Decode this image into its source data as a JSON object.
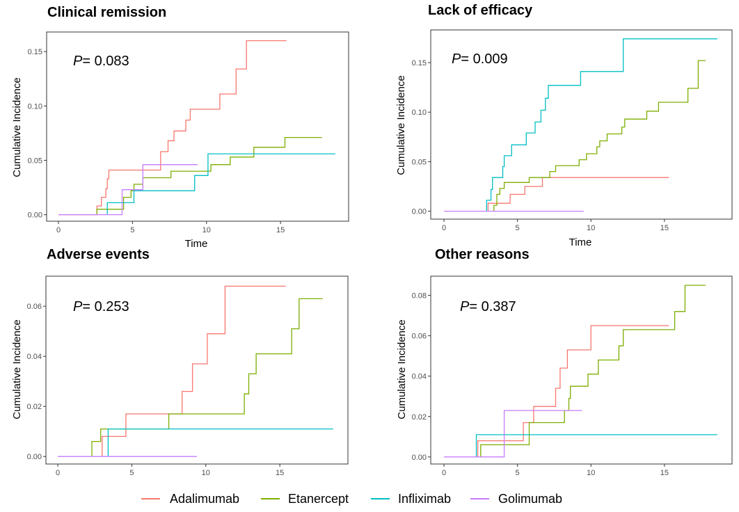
{
  "colors": {
    "Adalimumab": "#F8766D",
    "Etanercept": "#7CAE00",
    "Infliximab": "#00BFC4",
    "Golimumab": "#C77CFF"
  },
  "legend": [
    "Adalimumab",
    "Etanercept",
    "Infliximab",
    "Golimumab"
  ],
  "chart_data": [
    {
      "type": "line",
      "step": true,
      "title": "Clinical remission",
      "annotation": {
        "p_label": "P",
        "p_value": "= 0.083"
      },
      "xlabel": "Time",
      "ylabel": "Cumulative Incidence",
      "xlim": [
        -0.8,
        19.6
      ],
      "ylim": [
        -0.006,
        0.168
      ],
      "xticks": [
        0,
        5,
        10,
        15
      ],
      "yticks": [
        0.0,
        0.05,
        0.1,
        0.15
      ],
      "ytick_labels": [
        "0.00",
        "0.05",
        "0.10",
        "0.15"
      ],
      "grid": false,
      "series": [
        {
          "name": "Adalimumab",
          "points": [
            [
              0,
              0
            ],
            [
              2.6,
              0
            ],
            [
              2.6,
              0.008
            ],
            [
              2.9,
              0.008
            ],
            [
              2.9,
              0.016
            ],
            [
              3.2,
              0.016
            ],
            [
              3.2,
              0.024
            ],
            [
              3.3,
              0.024
            ],
            [
              3.3,
              0.033
            ],
            [
              3.4,
              0.033
            ],
            [
              3.4,
              0.041
            ],
            [
              6.9,
              0.041
            ],
            [
              6.9,
              0.058
            ],
            [
              7.4,
              0.058
            ],
            [
              7.4,
              0.068
            ],
            [
              7.8,
              0.068
            ],
            [
              7.8,
              0.077
            ],
            [
              8.6,
              0.077
            ],
            [
              8.6,
              0.087
            ],
            [
              8.9,
              0.087
            ],
            [
              8.9,
              0.097
            ],
            [
              10.9,
              0.097
            ],
            [
              10.9,
              0.111
            ],
            [
              12.0,
              0.111
            ],
            [
              12.0,
              0.134
            ],
            [
              12.7,
              0.134
            ],
            [
              12.7,
              0.16
            ],
            [
              15.4,
              0.16
            ]
          ]
        },
        {
          "name": "Etanercept",
          "points": [
            [
              2.6,
              0
            ],
            [
              2.6,
              0.005
            ],
            [
              4.4,
              0.005
            ],
            [
              4.4,
              0.011
            ],
            [
              4.4,
              0.016
            ],
            [
              4.9,
              0.016
            ],
            [
              4.9,
              0.022
            ],
            [
              5.1,
              0.022
            ],
            [
              5.1,
              0.028
            ],
            [
              5.7,
              0.028
            ],
            [
              5.7,
              0.034
            ],
            [
              7.6,
              0.034
            ],
            [
              7.6,
              0.04
            ],
            [
              10.3,
              0.04
            ],
            [
              10.3,
              0.046
            ],
            [
              11.6,
              0.046
            ],
            [
              11.6,
              0.053
            ],
            [
              13.2,
              0.053
            ],
            [
              13.2,
              0.062
            ],
            [
              15.3,
              0.062
            ],
            [
              15.3,
              0.071
            ],
            [
              17.8,
              0.071
            ]
          ]
        },
        {
          "name": "Infliximab",
          "points": [
            [
              3.3,
              0
            ],
            [
              3.3,
              0.011
            ],
            [
              5.1,
              0.011
            ],
            [
              5.1,
              0.022
            ],
            [
              9.2,
              0.022
            ],
            [
              9.2,
              0.036
            ],
            [
              10.1,
              0.036
            ],
            [
              10.1,
              0.056
            ],
            [
              18.7,
              0.056
            ]
          ]
        },
        {
          "name": "Golimumab",
          "points": [
            [
              0,
              0
            ],
            [
              4.3,
              0
            ],
            [
              4.3,
              0.023
            ],
            [
              5.7,
              0.023
            ],
            [
              5.7,
              0.046
            ],
            [
              9.4,
              0.046
            ]
          ]
        }
      ]
    },
    {
      "type": "line",
      "step": true,
      "title": "Lack of efficacy",
      "annotation": {
        "p_label": "P",
        "p_value": "= 0.009"
      },
      "xlabel": "Time",
      "ylabel": "Cumulative Incidence",
      "xlim": [
        -0.9,
        19.6
      ],
      "ylim": [
        -0.008,
        0.183
      ],
      "xticks": [
        0,
        5,
        10,
        15
      ],
      "yticks": [
        0.0,
        0.05,
        0.1,
        0.15
      ],
      "ytick_labels": [
        "0.00",
        "0.05",
        "0.10",
        "0.15"
      ],
      "grid": false,
      "series": [
        {
          "name": "Adalimumab",
          "points": [
            [
              3.0,
              0
            ],
            [
              3.0,
              0.008
            ],
            [
              4.5,
              0.008
            ],
            [
              4.5,
              0.017
            ],
            [
              5.5,
              0.017
            ],
            [
              5.5,
              0.025
            ],
            [
              6.7,
              0.025
            ],
            [
              6.7,
              0.034
            ],
            [
              15.3,
              0.034
            ]
          ]
        },
        {
          "name": "Etanercept",
          "points": [
            [
              3.4,
              0
            ],
            [
              3.4,
              0.006
            ],
            [
              3.6,
              0.006
            ],
            [
              3.6,
              0.017
            ],
            [
              3.8,
              0.017
            ],
            [
              3.8,
              0.023
            ],
            [
              4.1,
              0.023
            ],
            [
              4.1,
              0.029
            ],
            [
              5.8,
              0.029
            ],
            [
              5.8,
              0.034
            ],
            [
              7.2,
              0.034
            ],
            [
              7.2,
              0.04
            ],
            [
              7.6,
              0.04
            ],
            [
              7.6,
              0.046
            ],
            [
              9.2,
              0.046
            ],
            [
              9.2,
              0.052
            ],
            [
              9.7,
              0.052
            ],
            [
              9.7,
              0.058
            ],
            [
              10.4,
              0.058
            ],
            [
              10.4,
              0.065
            ],
            [
              10.6,
              0.065
            ],
            [
              10.6,
              0.071
            ],
            [
              11.1,
              0.071
            ],
            [
              11.1,
              0.078
            ],
            [
              12.1,
              0.078
            ],
            [
              12.1,
              0.085
            ],
            [
              12.3,
              0.085
            ],
            [
              12.3,
              0.093
            ],
            [
              13.8,
              0.093
            ],
            [
              13.8,
              0.101
            ],
            [
              14.6,
              0.101
            ],
            [
              14.6,
              0.11
            ],
            [
              16.6,
              0.11
            ],
            [
              16.6,
              0.124
            ],
            [
              17.3,
              0.124
            ],
            [
              17.3,
              0.152
            ],
            [
              17.8,
              0.152
            ]
          ]
        },
        {
          "name": "Infliximab",
          "points": [
            [
              2.9,
              0
            ],
            [
              2.9,
              0.011
            ],
            [
              3.2,
              0.011
            ],
            [
              3.2,
              0.022
            ],
            [
              3.3,
              0.022
            ],
            [
              3.3,
              0.034
            ],
            [
              4.0,
              0.034
            ],
            [
              4.0,
              0.045
            ],
            [
              4.1,
              0.045
            ],
            [
              4.1,
              0.056
            ],
            [
              4.6,
              0.056
            ],
            [
              4.6,
              0.067
            ],
            [
              5.6,
              0.067
            ],
            [
              5.6,
              0.079
            ],
            [
              6.2,
              0.079
            ],
            [
              6.2,
              0.09
            ],
            [
              6.6,
              0.09
            ],
            [
              6.6,
              0.102
            ],
            [
              6.9,
              0.102
            ],
            [
              6.9,
              0.114
            ],
            [
              7.1,
              0.114
            ],
            [
              7.1,
              0.127
            ],
            [
              9.3,
              0.127
            ],
            [
              9.3,
              0.141
            ],
            [
              12.2,
              0.141
            ],
            [
              12.2,
              0.174
            ],
            [
              18.6,
              0.174
            ]
          ]
        },
        {
          "name": "Golimumab",
          "points": [
            [
              0,
              0
            ],
            [
              9.5,
              0
            ]
          ]
        }
      ]
    },
    {
      "type": "line",
      "step": true,
      "title": "Adverse events",
      "annotation": {
        "p_label": "P",
        "p_value": "= 0.253"
      },
      "xlabel": "",
      "ylabel": "Cumulative Incidence",
      "xlim": [
        -0.8,
        19.6
      ],
      "ylim": [
        -0.003,
        0.072
      ],
      "xticks": [
        0,
        5,
        10,
        15
      ],
      "yticks": [
        0.0,
        0.02,
        0.04,
        0.06
      ],
      "ytick_labels": [
        "0.00",
        "0.02",
        "0.04",
        "0.06"
      ],
      "grid": false,
      "series": [
        {
          "name": "Adalimumab",
          "points": [
            [
              3.0,
              0
            ],
            [
              3.0,
              0.008
            ],
            [
              4.6,
              0.008
            ],
            [
              4.6,
              0.017
            ],
            [
              8.4,
              0.017
            ],
            [
              8.4,
              0.026
            ],
            [
              9.1,
              0.026
            ],
            [
              9.1,
              0.037
            ],
            [
              10.1,
              0.037
            ],
            [
              10.1,
              0.049
            ],
            [
              11.3,
              0.049
            ],
            [
              11.3,
              0.068
            ],
            [
              15.4,
              0.068
            ]
          ]
        },
        {
          "name": "Etanercept",
          "points": [
            [
              2.3,
              0
            ],
            [
              2.3,
              0.006
            ],
            [
              2.9,
              0.006
            ],
            [
              2.9,
              0.011
            ],
            [
              3.4,
              0.011
            ],
            [
              7.5,
              0.011
            ],
            [
              7.5,
              0.017
            ],
            [
              12.6,
              0.017
            ],
            [
              12.6,
              0.025
            ],
            [
              12.9,
              0.025
            ],
            [
              12.9,
              0.033
            ],
            [
              13.4,
              0.033
            ],
            [
              13.4,
              0.041
            ],
            [
              15.8,
              0.041
            ],
            [
              15.8,
              0.051
            ],
            [
              16.3,
              0.051
            ],
            [
              16.3,
              0.063
            ],
            [
              17.9,
              0.063
            ]
          ]
        },
        {
          "name": "Infliximab",
          "points": [
            [
              3.4,
              0
            ],
            [
              3.4,
              0.011
            ],
            [
              18.6,
              0.011
            ]
          ]
        },
        {
          "name": "Golimumab",
          "points": [
            [
              0,
              0
            ],
            [
              9.4,
              0
            ]
          ]
        }
      ]
    },
    {
      "type": "line",
      "step": true,
      "title": "Other reasons",
      "annotation": {
        "p_label": "P",
        "p_value": "= 0.387"
      },
      "xlabel": "",
      "ylabel": "Cumulative Incidence",
      "xlim": [
        -0.9,
        19.6
      ],
      "ylim": [
        -0.0035,
        0.0895
      ],
      "xticks": [
        0,
        5,
        10,
        15
      ],
      "yticks": [
        0.0,
        0.02,
        0.04,
        0.06,
        0.08
      ],
      "ytick_labels": [
        "0.00",
        "0.02",
        "0.04",
        "0.06",
        "0.08"
      ],
      "grid": false,
      "series": [
        {
          "name": "Adalimumab",
          "points": [
            [
              2.3,
              0
            ],
            [
              2.3,
              0.008
            ],
            [
              5.4,
              0.008
            ],
            [
              5.4,
              0.017
            ],
            [
              6.1,
              0.017
            ],
            [
              6.1,
              0.025
            ],
            [
              7.6,
              0.025
            ],
            [
              7.6,
              0.034
            ],
            [
              7.9,
              0.034
            ],
            [
              7.9,
              0.044
            ],
            [
              8.4,
              0.044
            ],
            [
              8.4,
              0.053
            ],
            [
              10.0,
              0.053
            ],
            [
              10.0,
              0.065
            ],
            [
              15.3,
              0.065
            ]
          ]
        },
        {
          "name": "Etanercept",
          "points": [
            [
              2.5,
              0
            ],
            [
              2.5,
              0.006
            ],
            [
              5.8,
              0.006
            ],
            [
              5.8,
              0.017
            ],
            [
              8.2,
              0.017
            ],
            [
              8.2,
              0.023
            ],
            [
              8.5,
              0.023
            ],
            [
              8.5,
              0.029
            ],
            [
              8.6,
              0.029
            ],
            [
              8.6,
              0.035
            ],
            [
              9.8,
              0.035
            ],
            [
              9.8,
              0.041
            ],
            [
              10.5,
              0.041
            ],
            [
              10.5,
              0.048
            ],
            [
              11.9,
              0.048
            ],
            [
              11.9,
              0.055
            ],
            [
              12.2,
              0.055
            ],
            [
              12.2,
              0.063
            ],
            [
              15.7,
              0.063
            ],
            [
              15.7,
              0.072
            ],
            [
              16.4,
              0.072
            ],
            [
              16.4,
              0.085
            ],
            [
              17.8,
              0.085
            ]
          ]
        },
        {
          "name": "Infliximab",
          "points": [
            [
              2.2,
              0
            ],
            [
              2.2,
              0.011
            ],
            [
              18.6,
              0.011
            ]
          ]
        },
        {
          "name": "Golimumab",
          "points": [
            [
              0,
              0
            ],
            [
              4.1,
              0
            ],
            [
              4.1,
              0.023
            ],
            [
              9.4,
              0.023
            ]
          ]
        }
      ]
    }
  ]
}
